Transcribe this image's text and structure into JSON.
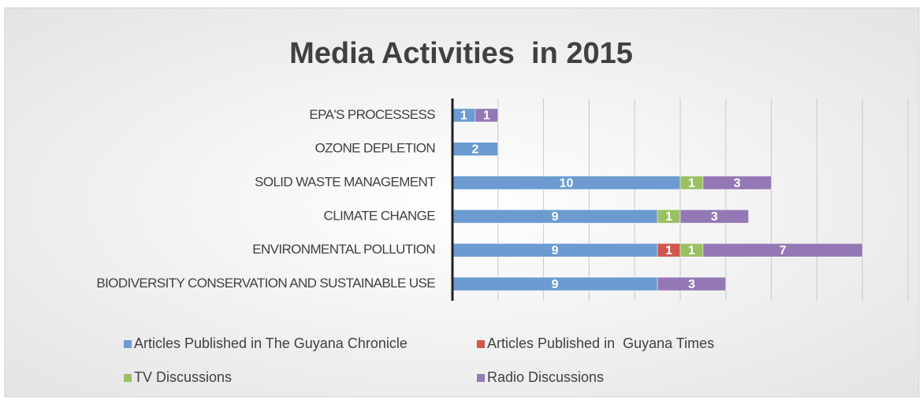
{
  "chart_data": {
    "type": "stacked-barh",
    "title": "Media Activities  in 2015",
    "categories": [
      "EPA'S PROCESSESS",
      "OZONE DEPLETION",
      "SOLID WASTE MANAGEMENT",
      "CLIMATE CHANGE",
      "ENVIRONMENTAL POLLUTION",
      "BIODIVERSITY CONSERVATION AND SUSTAINABLE USE"
    ],
    "series": [
      {
        "name": "Articles Published in The Guyana Chronicle",
        "color": "#6b9bd1",
        "values": [
          1,
          2,
          10,
          9,
          9,
          9
        ]
      },
      {
        "name": "Articles Published in  Guyana Times",
        "color": "#d0574e",
        "values": [
          null,
          null,
          null,
          null,
          1,
          null
        ]
      },
      {
        "name": "TV Discussions",
        "color": "#9bc063",
        "values": [
          null,
          null,
          1,
          1,
          1,
          null
        ]
      },
      {
        "name": "Radio Discussions",
        "color": "#9478b5",
        "values": [
          1,
          null,
          3,
          3,
          7,
          3
        ]
      }
    ],
    "xlim": [
      0,
      20
    ],
    "xticks": [
      0,
      2,
      4,
      6,
      8,
      10,
      12,
      14,
      16,
      18,
      20
    ],
    "grid": true,
    "legend": "bottom"
  }
}
